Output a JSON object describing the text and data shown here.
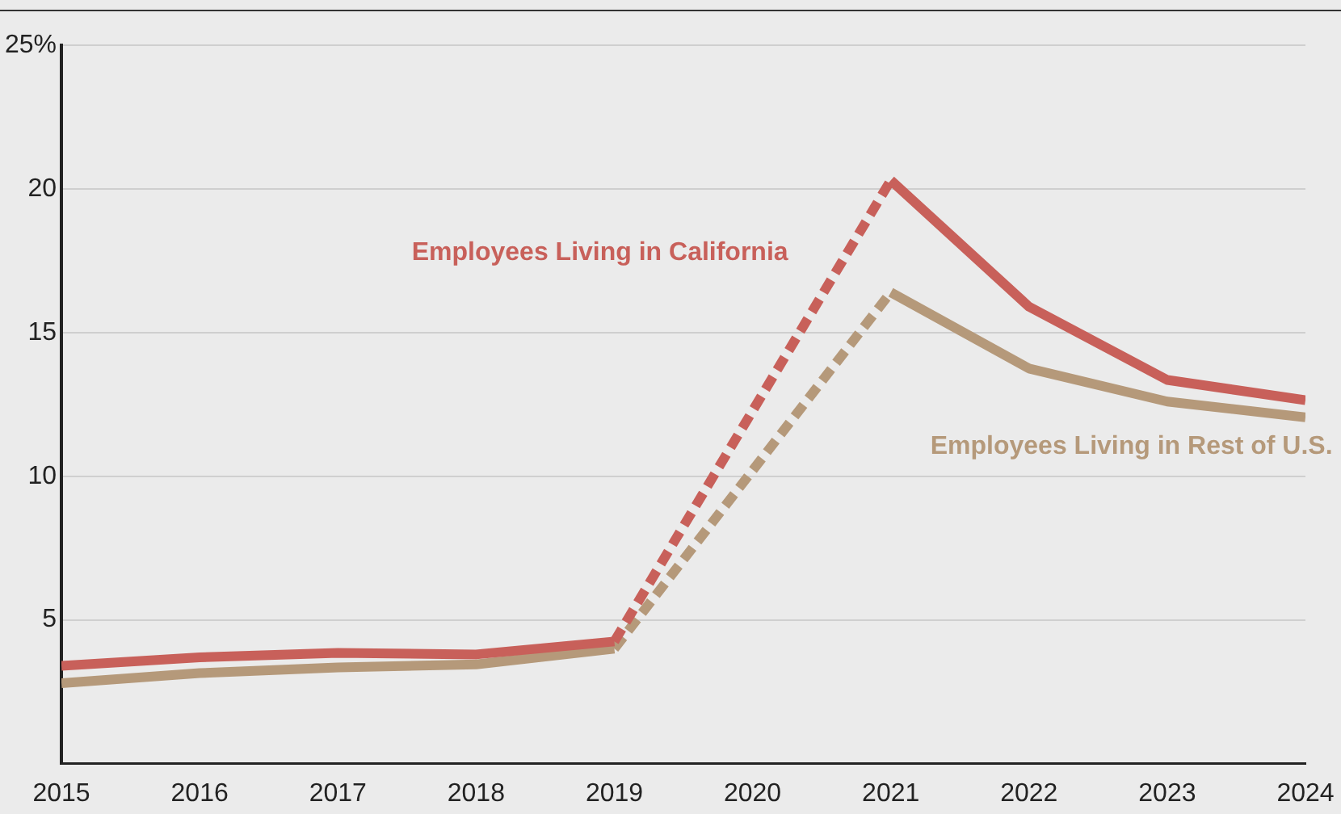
{
  "chart_data": {
    "type": "line",
    "x": [
      2015,
      2016,
      2017,
      2018,
      2019,
      2020,
      2021,
      2022,
      2023,
      2024
    ],
    "series": [
      {
        "name": "Employees Living in California",
        "color": "#c8605a",
        "values": [
          3.4,
          3.7,
          3.85,
          3.8,
          4.25,
          null,
          20.3,
          15.9,
          13.35,
          12.65
        ]
      },
      {
        "name": "Employees Living in Rest of U.S.",
        "color": "#b5997a",
        "values": [
          2.8,
          3.15,
          3.35,
          3.45,
          4.0,
          null,
          16.4,
          13.75,
          12.6,
          12.05
        ]
      }
    ],
    "xlim": [
      2015,
      2024
    ],
    "xticks": [
      2015,
      2016,
      2017,
      2018,
      2019,
      2020,
      2021,
      2022,
      2023,
      2024
    ],
    "ylim": [
      0,
      25
    ],
    "yticks": [
      5,
      10,
      15,
      20,
      {
        "value": 25,
        "label": "25%"
      }
    ],
    "grid": "y",
    "legend": false,
    "marker": "none",
    "line_style": "solid"
  }
}
